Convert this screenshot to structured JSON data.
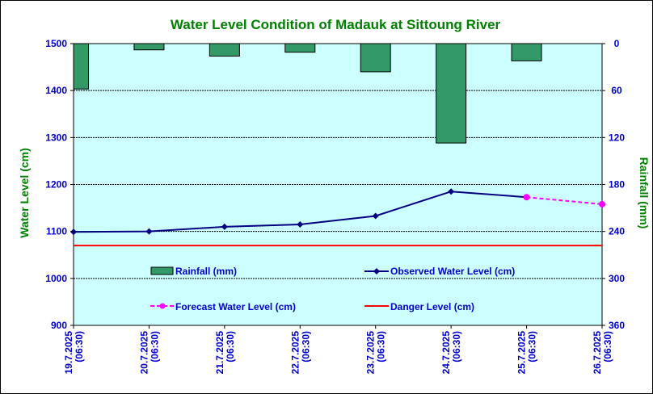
{
  "chart_data": {
    "type": "bar+line",
    "title": "Water Level Condition of Madauk at Sittoung River",
    "ylabel": "Water Level (cm)",
    "y2label": "Rainfall (mm)",
    "ylim": [
      900,
      1500
    ],
    "y_ticks": [
      "1500",
      "1400",
      "1300",
      "1200",
      "1100",
      "1000",
      "900"
    ],
    "y2lim": [
      0,
      360
    ],
    "y2_inverted": true,
    "y2_ticks": [
      "0",
      "60",
      "120",
      "180",
      "240",
      "300",
      "360"
    ],
    "categories": [
      [
        "19.7.2025",
        "(06:30)"
      ],
      [
        "20.7.2025",
        "(06:30)"
      ],
      [
        "21.7.2025",
        "(06:30)"
      ],
      [
        "22.7.2025",
        "(06:30)"
      ],
      [
        "23.7.2025",
        "(06:30)"
      ],
      [
        "24.7.2025",
        "(06:30)"
      ],
      [
        "25.7.2025",
        "(06:30)"
      ],
      [
        "26.7.2025",
        "(06:30)"
      ]
    ],
    "rainfall": {
      "name": "Rainfall (mm)",
      "color": "#339966",
      "values": [
        58,
        8,
        16,
        11,
        36,
        127,
        22
      ]
    },
    "observed": {
      "name": "Observed Water Level (cm)",
      "color": "#000080",
      "values": [
        1099,
        1100,
        1110,
        1115,
        1133,
        1185,
        1173
      ]
    },
    "forecast": {
      "name": "Forecast Water Level (cm)",
      "color": "#ff00ff",
      "points": [
        [
          6,
          1173
        ],
        [
          7,
          1158
        ]
      ]
    },
    "danger": {
      "name": "Danger Level (cm)",
      "color": "#ff0000",
      "value": 1070
    },
    "grid": true,
    "plot_background": "#ccffff",
    "title_color": "#008000",
    "axis_text_color": "#0000cc"
  }
}
